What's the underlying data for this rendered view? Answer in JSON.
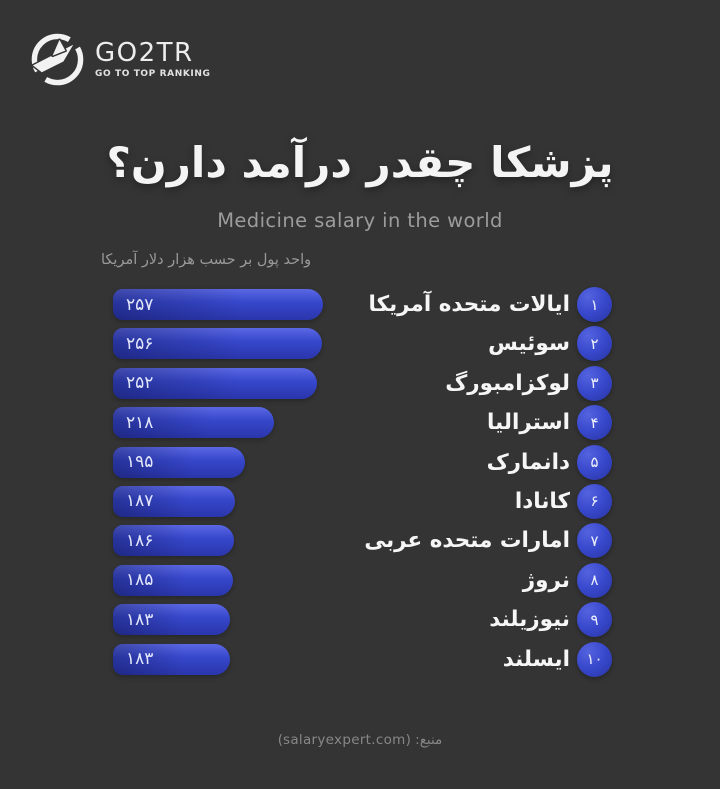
{
  "brand": {
    "name": "GO2TR",
    "tagline": "GO TO TOP RANKING"
  },
  "title": "پزشکا چقدر درآمد دارن؟",
  "subtitle": "Medicine salary in the world",
  "unit_label": "واحد پول بر حسب هزار دلار آمریکا",
  "source_label": "منبع: (salaryexpert.com)",
  "colors": {
    "background": "#343434",
    "bar_blue_light": "#5b68e4",
    "bar_blue_dark": "#2a36ab",
    "title_text": "#f4f4f4",
    "muted_text": "#9a9a9a"
  },
  "chart_data": {
    "type": "bar",
    "orientation": "horizontal",
    "title": "پزشکا چقدر درآمد دارن؟",
    "subtitle": "Medicine salary in the world",
    "unit_note": "واحد پول بر حسب هزار دلار آمریکا",
    "value_unit": "thousand US dollars",
    "xlim": [
      0,
      257
    ],
    "grid": false,
    "legend": "none",
    "rows": [
      {
        "rank_fa": "۱",
        "country": "ایالات متحده آمریکا",
        "value": 257,
        "value_fa": "۲۵۷"
      },
      {
        "rank_fa": "۲",
        "country": "سوئیس",
        "value": 256,
        "value_fa": "۲۵۶"
      },
      {
        "rank_fa": "۳",
        "country": "لوکزامبورگ",
        "value": 252,
        "value_fa": "۲۵۲"
      },
      {
        "rank_fa": "۴",
        "country": "استرالیا",
        "value": 218,
        "value_fa": "۲۱۸"
      },
      {
        "rank_fa": "۵",
        "country": "دانمارک",
        "value": 195,
        "value_fa": "۱۹۵"
      },
      {
        "rank_fa": "۶",
        "country": "کانادا",
        "value": 187,
        "value_fa": "۱۸۷"
      },
      {
        "rank_fa": "۷",
        "country": "امارات متحده عربی",
        "value": 186,
        "value_fa": "۱۸۶"
      },
      {
        "rank_fa": "۸",
        "country": "نروژ",
        "value": 185,
        "value_fa": "۱۸۵"
      },
      {
        "rank_fa": "۹",
        "country": "نیوزیلند",
        "value": 183,
        "value_fa": "۱۸۳"
      },
      {
        "rank_fa": "۱۰",
        "country": "ایسلند",
        "value": 183,
        "value_fa": "۱۸۳"
      }
    ],
    "source": "salaryexpert.com"
  }
}
